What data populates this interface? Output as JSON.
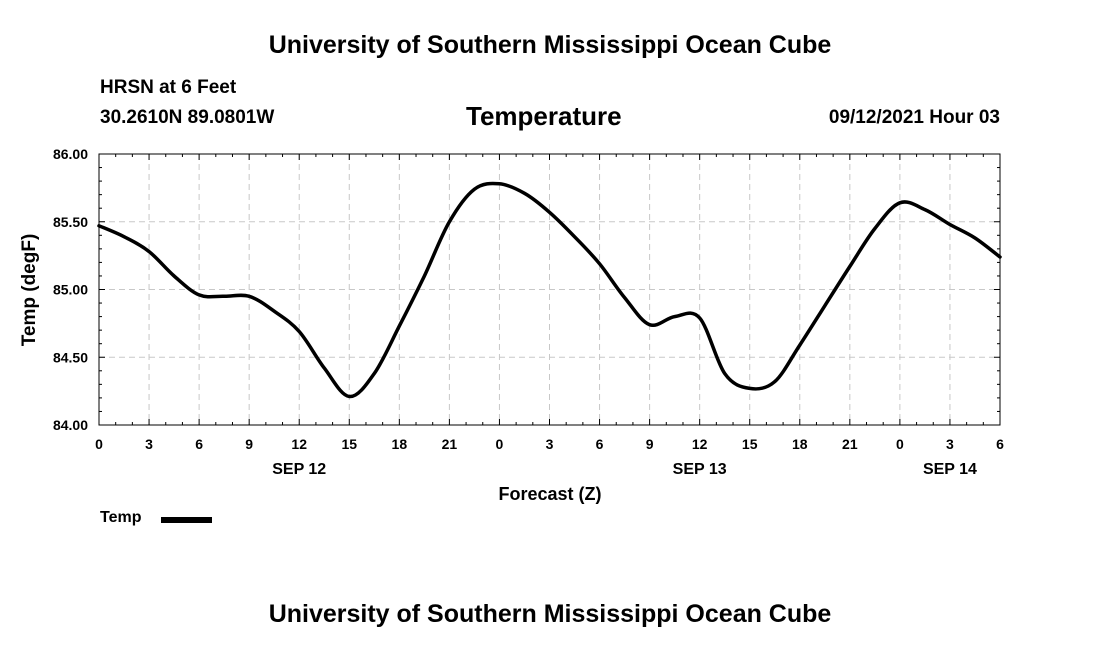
{
  "header": {
    "title": "University of Southern Mississippi Ocean Cube",
    "station": "HRSN at 6 Feet",
    "coords": "30.2610N  89.0801W",
    "chart_title": "Temperature",
    "timestamp": "09/12/2021 Hour 03"
  },
  "footer": {
    "title": "University of Southern Mississippi Ocean Cube"
  },
  "legend": {
    "label": "Temp"
  },
  "colors": {
    "line": "#000000",
    "grid": "#c8c8c8",
    "axis": "#000000"
  },
  "chart_data": {
    "type": "line",
    "title": "Temperature",
    "xlabel": "Forecast (Z)",
    "ylabel": "Temp (degF)",
    "xlim": [
      0,
      54
    ],
    "ylim": [
      84.0,
      86.0
    ],
    "yticks": [
      84.0,
      84.5,
      85.0,
      85.5,
      86.0
    ],
    "ytick_labels": [
      "84.00",
      "84.50",
      "85.00",
      "85.50",
      "86.00"
    ],
    "xticks": [
      0,
      3,
      6,
      9,
      12,
      15,
      18,
      21,
      24,
      27,
      30,
      33,
      36,
      39,
      42,
      45,
      48,
      51,
      54
    ],
    "xtick_labels": [
      "0",
      "3",
      "6",
      "9",
      "12",
      "15",
      "18",
      "21",
      "0",
      "3",
      "6",
      "9",
      "12",
      "15",
      "18",
      "21",
      "0",
      "3",
      "6"
    ],
    "day_labels": [
      {
        "x": 12,
        "label": "SEP 12"
      },
      {
        "x": 36,
        "label": "SEP 13"
      },
      {
        "x": 51,
        "label": "SEP 14"
      }
    ],
    "grid": true,
    "legend": "bottom-left",
    "series": [
      {
        "name": "Temp",
        "x": [
          0,
          1.5,
          3,
          4.5,
          6,
          7.5,
          9,
          10.5,
          12,
          13.5,
          15,
          16.5,
          18,
          19.5,
          21,
          22.5,
          24,
          25.5,
          27,
          28.5,
          30,
          31.5,
          33,
          34.5,
          36,
          37.5,
          39,
          40.5,
          42,
          43.5,
          45,
          46.5,
          48,
          49.5,
          51,
          52.5,
          54
        ],
        "values": [
          85.47,
          85.39,
          85.28,
          85.1,
          84.96,
          84.95,
          84.95,
          84.84,
          84.69,
          84.42,
          84.21,
          84.38,
          84.73,
          85.1,
          85.5,
          85.74,
          85.78,
          85.71,
          85.57,
          85.39,
          85.19,
          84.94,
          84.74,
          84.8,
          84.79,
          84.38,
          84.27,
          84.32,
          84.59,
          84.88,
          85.17,
          85.45,
          85.64,
          85.59,
          85.48,
          85.38,
          85.24
        ]
      }
    ]
  }
}
